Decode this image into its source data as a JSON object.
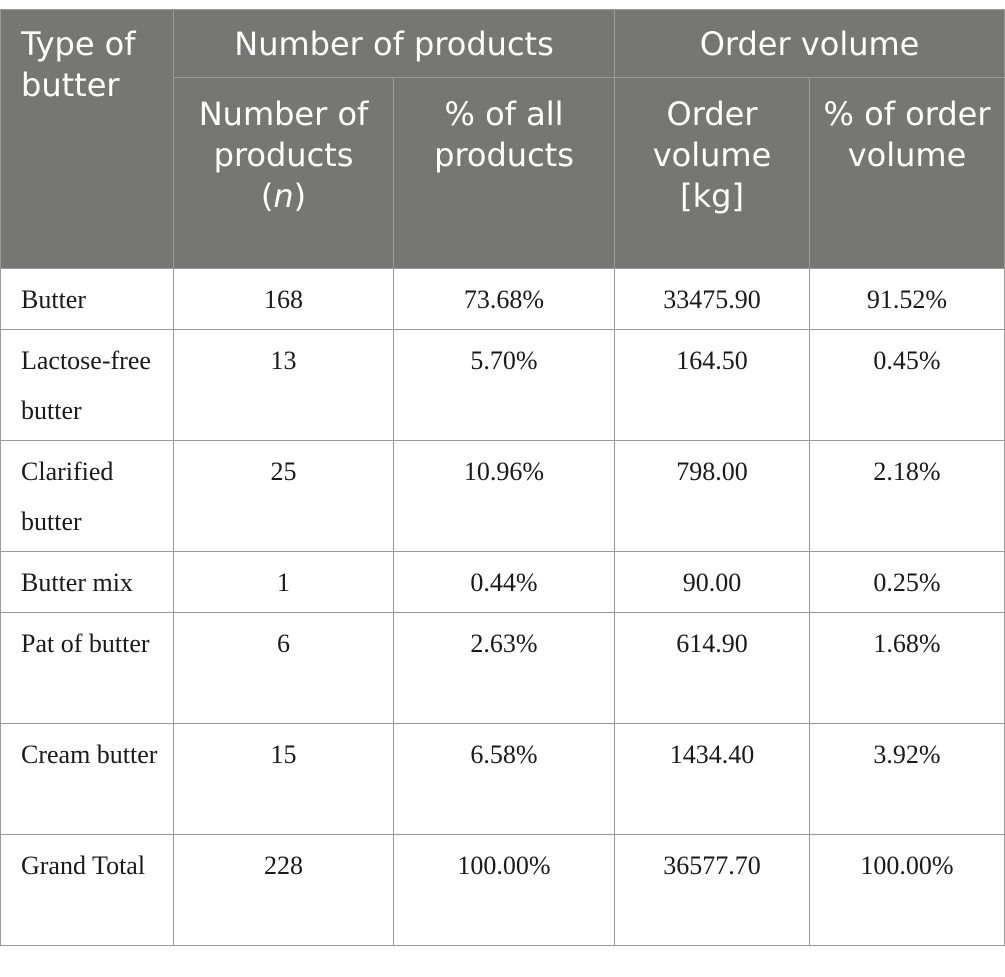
{
  "header": {
    "type_col": "Type of butter",
    "group_products": "Number of products",
    "group_order": "Order volume",
    "col_number": "Number of products",
    "col_number_unit": "n",
    "col_pct_products": "% of all products",
    "col_order_kg": "Order volume [kg]",
    "col_pct_order": "% of order volume"
  },
  "rows": [
    {
      "type": "Butter",
      "n": "168",
      "pct_products": "73.68%",
      "order_kg": "33475.90",
      "pct_order": "91.52%"
    },
    {
      "type": "Lactose-free butter",
      "n": "13",
      "pct_products": "5.70%",
      "order_kg": "164.50",
      "pct_order": "0.45%"
    },
    {
      "type": "Clarified butter",
      "n": "25",
      "pct_products": "10.96%",
      "order_kg": "798.00",
      "pct_order": "2.18%"
    },
    {
      "type": "Butter mix",
      "n": "1",
      "pct_products": "0.44%",
      "order_kg": "90.00",
      "pct_order": "0.25%"
    },
    {
      "type": "Pat of butter",
      "n": "6",
      "pct_products": "2.63%",
      "order_kg": "614.90",
      "pct_order": "1.68%"
    },
    {
      "type": "Cream butter",
      "n": "15",
      "pct_products": "6.58%",
      "order_kg": "1434.40",
      "pct_order": "3.92%"
    },
    {
      "type": "Grand Total",
      "n": "228",
      "pct_products": "100.00%",
      "order_kg": "36577.70",
      "pct_order": "100.00%"
    }
  ]
}
